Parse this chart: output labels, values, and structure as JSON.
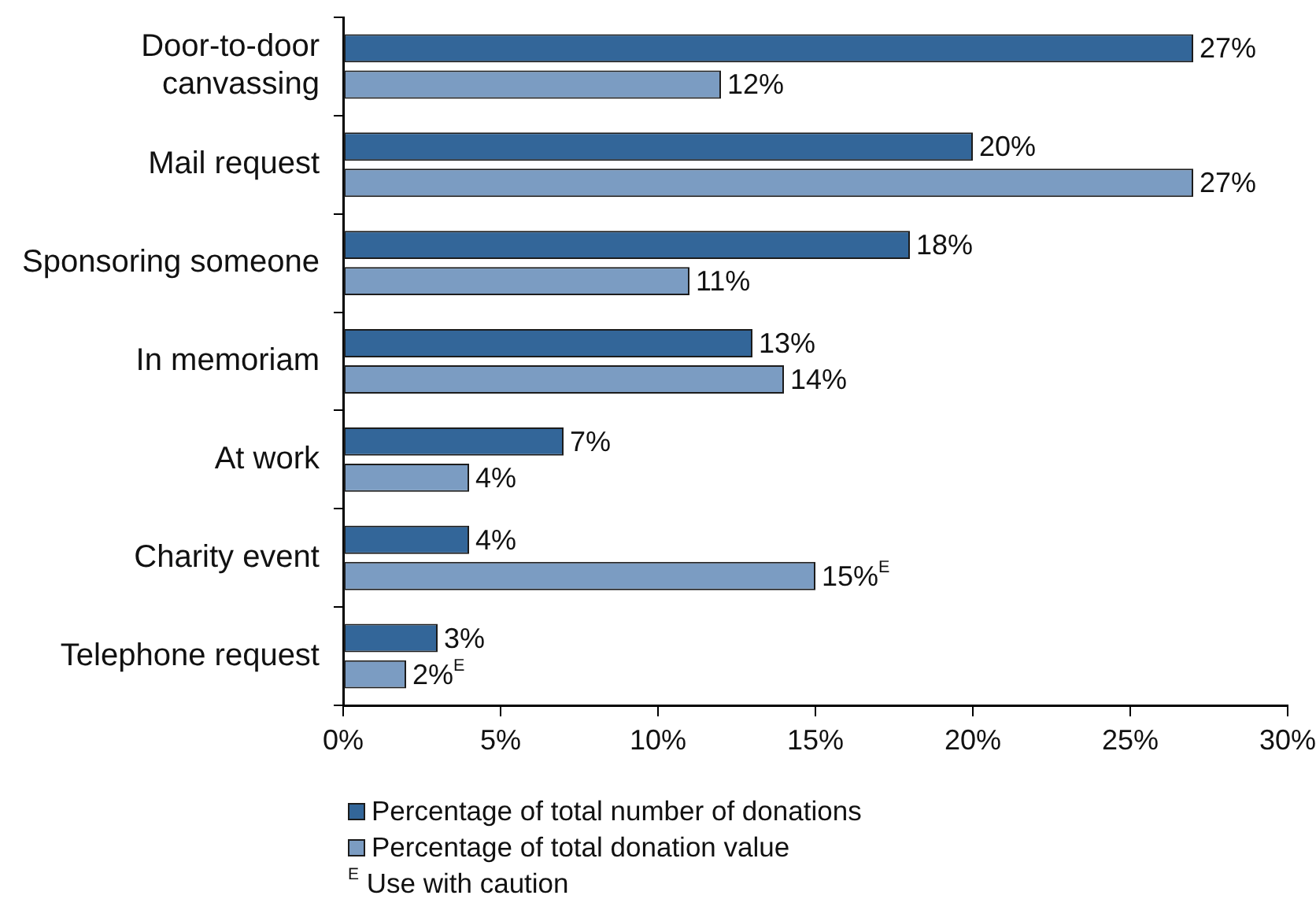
{
  "chart_data": {
    "type": "bar",
    "orientation": "horizontal",
    "categories": [
      "Door-to-door canvassing",
      "Mail request",
      "Sponsoring someone",
      "In memoriam",
      "At work",
      "Charity event",
      "Telephone request"
    ],
    "series": [
      {
        "name": "Percentage of total number of donations",
        "color": "#336699",
        "values": [
          27,
          20,
          18,
          13,
          7,
          4,
          3
        ],
        "value_labels": [
          "27%",
          "20%",
          "18%",
          "13%",
          "7%",
          "4%",
          "3%"
        ]
      },
      {
        "name": "Percentage of total donation value",
        "color": "#7b9cc2",
        "values": [
          12,
          27,
          11,
          14,
          4,
          15,
          2
        ],
        "value_labels": [
          "12%",
          "27%",
          "11%",
          "14%",
          "4%",
          "15%$^{E}$",
          "2%$^{E}$"
        ]
      }
    ],
    "xlim": [
      0,
      30
    ],
    "xticks": [
      {
        "value": 0,
        "label": "0%"
      },
      {
        "value": 5,
        "label": "5%"
      },
      {
        "value": 10,
        "label": "10%"
      },
      {
        "value": 15,
        "label": "15%"
      },
      {
        "value": 20,
        "label": "20%"
      },
      {
        "value": 25,
        "label": "25%"
      },
      {
        "value": 30,
        "label": "30%"
      }
    ],
    "legend": "bottom",
    "annotations": [
      "$^{E}$ Use with caution"
    ]
  }
}
